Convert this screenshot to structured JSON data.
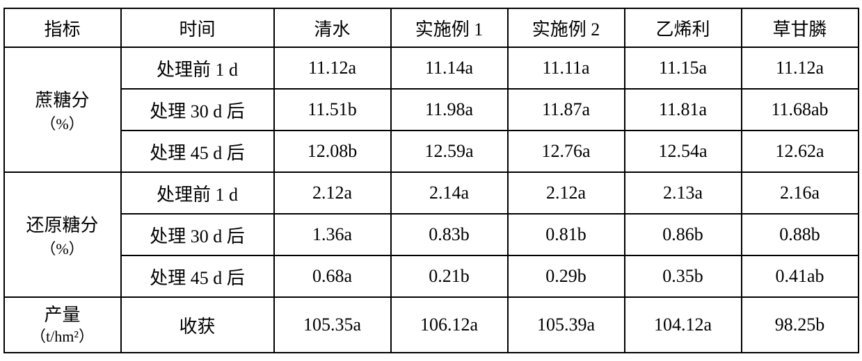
{
  "columns": [
    "指标",
    "时间",
    "清水",
    "实施例 1",
    "实施例 2",
    "乙烯利",
    "草甘膦"
  ],
  "groups": [
    {
      "metric_main": "蔗糖分",
      "metric_sub": "（%）",
      "rows": [
        {
          "time": "处理前 1 d",
          "values": [
            "11.12a",
            "11.14a",
            "11.11a",
            "11.15a",
            "11.12a"
          ]
        },
        {
          "time": "处理 30 d 后",
          "values": [
            "11.51b",
            "11.98a",
            "11.87a",
            "11.81a",
            "11.68ab"
          ]
        },
        {
          "time": "处理 45 d 后",
          "values": [
            "12.08b",
            "12.59a",
            "12.76a",
            "12.54a",
            "12.62a"
          ]
        }
      ]
    },
    {
      "metric_main": "还原糖分",
      "metric_sub": "（%）",
      "rows": [
        {
          "time": "处理前 1 d",
          "values": [
            "2.12a",
            "2.14a",
            "2.12a",
            "2.13a",
            "2.16a"
          ]
        },
        {
          "time": "处理 30 d 后",
          "values": [
            "1.36a",
            "0.83b",
            "0.81b",
            "0.86b",
            "0.88b"
          ]
        },
        {
          "time": "处理 45 d 后",
          "values": [
            "0.68a",
            "0.21b",
            "0.29b",
            "0.35b",
            "0.41ab"
          ]
        }
      ]
    }
  ],
  "yield_row": {
    "metric_main": "产量",
    "metric_sub": "（t/hm²）",
    "time": "收获",
    "values": [
      "105.35a",
      "106.12a",
      "105.39a",
      "104.12a",
      "98.25b"
    ]
  },
  "style": {
    "border_color": "#000000",
    "background_color": "#ffffff",
    "font_family": "SimSun",
    "header_fontsize": 26,
    "cell_fontsize": 26,
    "sub_fontsize": 22
  }
}
